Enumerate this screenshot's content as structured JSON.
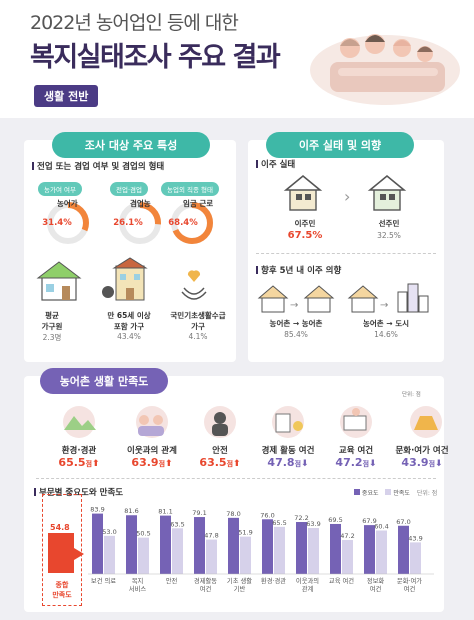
{
  "header": {
    "title_line1": "2022년 농어업인 등에 대한",
    "title_line2": "복지실태조사 주요 결과",
    "badge": "생활 전반"
  },
  "survey": {
    "pill": "조사 대상 주요 특성",
    "sub1": "전업 또는 겸업 여부 및 겸업의 형태",
    "donuts": [
      {
        "tag": "농가여 여부",
        "name": "농어가",
        "value": "31.4%",
        "pct": 31.4
      },
      {
        "tag": "전업·겸업",
        "name": "겸업농",
        "value": "26.1%",
        "pct": 26.1
      },
      {
        "tag": "농업외 직종 형태",
        "name": "임금 근로",
        "value": "68.4%",
        "pct": 68.4
      }
    ],
    "items": [
      {
        "label": "평균\n가구원",
        "value": "2.3명"
      },
      {
        "label": "만 65세 이상\n포함 가구",
        "value": "43.4%"
      },
      {
        "label": "국민기초생활수급\n가구",
        "value": "4.1%"
      }
    ]
  },
  "migration": {
    "pill": "이주 실태 및 의향",
    "sub1": "이주 실태",
    "a_label": "이주민",
    "a_value": "67.5%",
    "b_label": "선주민",
    "b_value": "32.5%",
    "sub2": "향후 5년 내 이주 의향",
    "c_label": "농어촌 → 농어촌",
    "c_value": "85.4%",
    "d_label": "농어촌 → 도시",
    "d_value": "14.6%"
  },
  "satisfaction": {
    "pill": "농어촌 생활 만족도",
    "unit": "단위: 점",
    "items": [
      {
        "name": "환경·경관",
        "value": "65.5",
        "unit": "점",
        "up": true
      },
      {
        "name": "이웃과의 관계",
        "value": "63.9",
        "unit": "점",
        "up": true
      },
      {
        "name": "안전",
        "value": "63.5",
        "unit": "점",
        "up": true
      },
      {
        "name": "경제 활동 여건",
        "value": "47.8",
        "unit": "점",
        "up": false
      },
      {
        "name": "교육 여건",
        "value": "47.2",
        "unit": "점",
        "up": false
      },
      {
        "name": "문화·여가 여건",
        "value": "43.9",
        "unit": "점",
        "up": false
      }
    ],
    "arrow_up": "⬆",
    "arrow_down": "⬇"
  },
  "chart_sub": "부문별 중요도와 만족도",
  "chart_unit": "단위: 점",
  "overall": {
    "value": "54.8",
    "label": "종합\n만족도"
  },
  "chart_data": {
    "type": "bar",
    "categories": [
      "보건 의료",
      "복지 서비스",
      "안전",
      "경제활동 여건",
      "기초 생활 기반",
      "환경·경관",
      "이웃과의 관계",
      "교육 여건",
      "정보화 여건",
      "문화·여가 여건"
    ],
    "series": [
      {
        "name": "중요도",
        "values": [
          83.9,
          81.6,
          81.1,
          79.1,
          78.0,
          76.0,
          72.2,
          69.5,
          67.9,
          67.0
        ],
        "color": "#7562b5"
      },
      {
        "name": "만족도",
        "values": [
          53.0,
          50.5,
          63.5,
          47.8,
          51.9,
          65.5,
          63.9,
          47.2,
          60.4,
          43.9
        ],
        "color": "#d6d1ea"
      }
    ],
    "ylim": [
      0,
      100
    ]
  }
}
